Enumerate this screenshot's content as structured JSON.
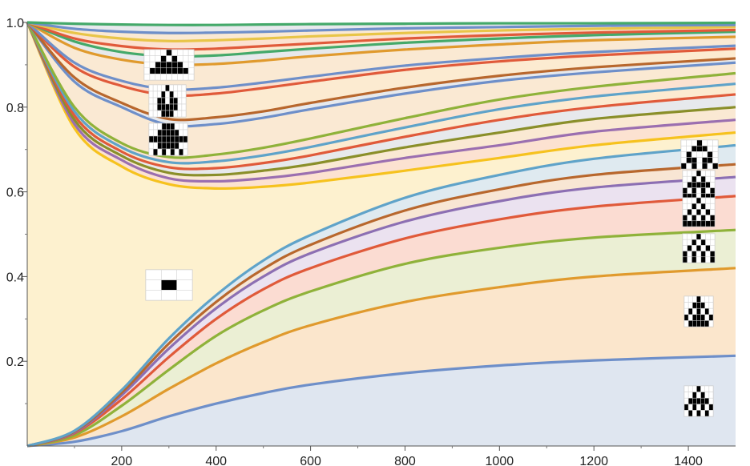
{
  "chart_data": {
    "type": "area",
    "title": "",
    "xlabel": "",
    "ylabel": "",
    "xlim": [
      0,
      1500
    ],
    "ylim": [
      0,
      1.0
    ],
    "x_ticks": [
      {
        "value": 200,
        "label": "200"
      },
      {
        "value": 400,
        "label": "400"
      },
      {
        "value": 600,
        "label": "600"
      },
      {
        "value": 800,
        "label": "800"
      },
      {
        "value": 1000,
        "label": "1000"
      },
      {
        "value": 1200,
        "label": "1200"
      },
      {
        "value": 1400,
        "label": "1400"
      }
    ],
    "y_ticks": [
      {
        "value": 0.2,
        "label": "0.2"
      },
      {
        "value": 0.4,
        "label": "0.4"
      },
      {
        "value": 0.6,
        "label": "0.6"
      },
      {
        "value": 0.8,
        "label": "0.8"
      },
      {
        "value": 1.0,
        "label": "1.0"
      }
    ],
    "x": [
      0,
      100,
      200,
      300,
      400,
      500,
      600,
      800,
      1000,
      1200,
      1500
    ],
    "lower_family": [
      {
        "color": "#6e8fc9",
        "values": [
          0,
          0.01,
          0.035,
          0.07,
          0.1,
          0.125,
          0.145,
          0.172,
          0.19,
          0.202,
          0.213
        ]
      },
      {
        "color": "#e09a2d",
        "values": [
          0,
          0.02,
          0.07,
          0.135,
          0.195,
          0.245,
          0.285,
          0.34,
          0.375,
          0.4,
          0.42
        ]
      },
      {
        "color": "#8fb23a",
        "values": [
          0,
          0.025,
          0.095,
          0.18,
          0.26,
          0.32,
          0.365,
          0.43,
          0.468,
          0.492,
          0.51
        ]
      },
      {
        "color": "#e05a3a",
        "values": [
          0,
          0.03,
          0.11,
          0.21,
          0.3,
          0.37,
          0.42,
          0.49,
          0.535,
          0.565,
          0.59
        ]
      },
      {
        "color": "#8c6fb3",
        "values": [
          0,
          0.032,
          0.12,
          0.23,
          0.325,
          0.4,
          0.455,
          0.53,
          0.578,
          0.61,
          0.635
        ]
      },
      {
        "color": "#b8672d",
        "values": [
          0,
          0.034,
          0.126,
          0.242,
          0.34,
          0.418,
          0.475,
          0.556,
          0.606,
          0.64,
          0.665
        ]
      },
      {
        "color": "#5fa3c9",
        "values": [
          0,
          0.036,
          0.132,
          0.254,
          0.356,
          0.438,
          0.498,
          0.586,
          0.64,
          0.678,
          0.71
        ]
      }
    ],
    "upper_family": [
      {
        "color": "#f6c21e",
        "values": [
          1.0,
          0.75,
          0.66,
          0.618,
          0.608,
          0.612,
          0.622,
          0.65,
          0.68,
          0.71,
          0.74
        ]
      },
      {
        "color": "#9b6fb0",
        "values": [
          1.0,
          0.76,
          0.675,
          0.632,
          0.625,
          0.632,
          0.645,
          0.68,
          0.71,
          0.742,
          0.77
        ]
      },
      {
        "color": "#8a8f2a",
        "values": [
          1.0,
          0.77,
          0.685,
          0.645,
          0.64,
          0.65,
          0.665,
          0.705,
          0.74,
          0.772,
          0.8
        ]
      },
      {
        "color": "#e05a3a",
        "values": [
          1.0,
          0.78,
          0.695,
          0.658,
          0.656,
          0.668,
          0.686,
          0.73,
          0.77,
          0.8,
          0.83
        ]
      },
      {
        "color": "#5fa3c9",
        "values": [
          1.0,
          0.79,
          0.705,
          0.67,
          0.672,
          0.686,
          0.706,
          0.752,
          0.795,
          0.825,
          0.855
        ]
      },
      {
        "color": "#8fb23a",
        "values": [
          1.0,
          0.8,
          0.715,
          0.682,
          0.688,
          0.704,
          0.726,
          0.774,
          0.818,
          0.848,
          0.88
        ]
      },
      {
        "color": "#6e8fc9",
        "values": [
          1.0,
          0.86,
          0.8,
          0.758,
          0.76,
          0.775,
          0.795,
          0.832,
          0.862,
          0.882,
          0.905
        ]
      },
      {
        "color": "#b8672d",
        "values": [
          1.0,
          0.87,
          0.81,
          0.772,
          0.776,
          0.79,
          0.81,
          0.846,
          0.874,
          0.894,
          0.915
        ]
      },
      {
        "color": "#e05a3a",
        "values": [
          1.0,
          0.895,
          0.85,
          0.828,
          0.832,
          0.845,
          0.86,
          0.888,
          0.908,
          0.922,
          0.938
        ]
      },
      {
        "color": "#6e8fc9",
        "values": [
          1.0,
          0.905,
          0.862,
          0.842,
          0.846,
          0.858,
          0.872,
          0.898,
          0.916,
          0.93,
          0.945
        ]
      },
      {
        "color": "#e09a2d",
        "values": [
          1.0,
          0.94,
          0.912,
          0.9,
          0.902,
          0.91,
          0.92,
          0.936,
          0.948,
          0.958,
          0.966
        ]
      },
      {
        "color": "#44a96a",
        "values": [
          1.0,
          0.955,
          0.93,
          0.92,
          0.922,
          0.93,
          0.938,
          0.952,
          0.962,
          0.97,
          0.978
        ]
      },
      {
        "color": "#e05a3a",
        "values": [
          1.0,
          0.962,
          0.944,
          0.936,
          0.938,
          0.944,
          0.95,
          0.962,
          0.97,
          0.976,
          0.982
        ]
      },
      {
        "color": "#e8c548",
        "values": [
          1.0,
          0.975,
          0.962,
          0.956,
          0.958,
          0.962,
          0.967,
          0.975,
          0.981,
          0.985,
          0.989
        ]
      },
      {
        "color": "#6e8fc9",
        "values": [
          1.0,
          0.985,
          0.978,
          0.975,
          0.976,
          0.978,
          0.981,
          0.986,
          0.989,
          0.992,
          0.994
        ]
      },
      {
        "color": "#44a96a",
        "values": [
          1.0,
          0.997,
          0.995,
          0.994,
          0.994,
          0.995,
          0.996,
          0.997,
          0.998,
          0.998,
          0.999
        ]
      }
    ],
    "band_fill_colors": [
      "#dfe6f0",
      "#fbe6cc",
      "#ebefd4",
      "#fbdcd2",
      "#ebe2f0",
      "#f8e6d4",
      "#dfeaf0"
    ],
    "upper_band_fill_colors": [
      "#fbdcd2",
      "#f8e6d4",
      "#dfe6f5",
      "#fbe8d2"
    ],
    "base_fill_color": "#fdf1cf",
    "thumbnails": [
      {
        "name": "pattern-pyramid-thumb",
        "pattern": [
          "....#....",
          "...#.#...",
          "..#####..",
          ".#######.",
          "........."
        ]
      },
      {
        "name": "pattern-bell-thumb",
        "pattern": [
          "....#....",
          "...#.#...",
          "..##.##..",
          "..#####..",
          "...###..."
        ]
      },
      {
        "name": "pattern-hat-thumb",
        "pattern": [
          "...###...",
          "..#####..",
          "#########",
          "..#####..",
          ".#.#.#.#."
        ]
      },
      {
        "name": "pattern-single-cell-thumb",
        "pattern": [
          "...",
          ".#.",
          "..."
        ]
      },
      {
        "name": "pattern-triangle-a-thumb",
        "pattern": [
          "...#...",
          "..###..",
          ".#...#.",
          ".##.##.",
          "#.#.#.#"
        ]
      },
      {
        "name": "pattern-triangle-b-thumb",
        "pattern": [
          "...#...",
          "..#.#..",
          ".#####.",
          "#.#.#.#",
          "###.###"
        ]
      },
      {
        "name": "pattern-triangle-c-thumb",
        "pattern": [
          "...#...",
          "..#.#..",
          ".#.#.#.",
          "#.#.#.#",
          "#######"
        ]
      },
      {
        "name": "pattern-triangle-d-thumb",
        "pattern": [
          "...#...",
          "..#.#..",
          ".#.#.#.",
          "#.#.#.#",
          "#.#.#.#"
        ]
      },
      {
        "name": "pattern-drop-thumb",
        "pattern": [
          "...#...",
          "..###..",
          ".#.#.#.",
          "#.###.#",
          ".#####."
        ]
      },
      {
        "name": "pattern-tree-thumb",
        "pattern": [
          "...#...",
          "..#.#..",
          ".#####.",
          "#.#.#.#",
          ".#.#.#."
        ]
      }
    ]
  }
}
